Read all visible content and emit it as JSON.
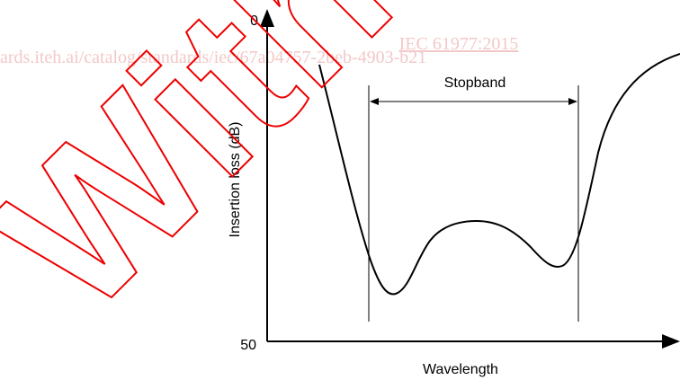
{
  "figure": {
    "y_axis_top": "0",
    "y_axis_bottom": "50",
    "y_axis_label": "Insertion loss (dB)",
    "x_axis_label": "Wavelength",
    "band_label": "Stopband"
  },
  "watermark": {
    "standard": "IEC 61977:2015",
    "url": "ards.iteh.ai/catalog/standards/iec/67a04757-2beb-4903-b21",
    "stamp": "Withdrawn"
  }
}
